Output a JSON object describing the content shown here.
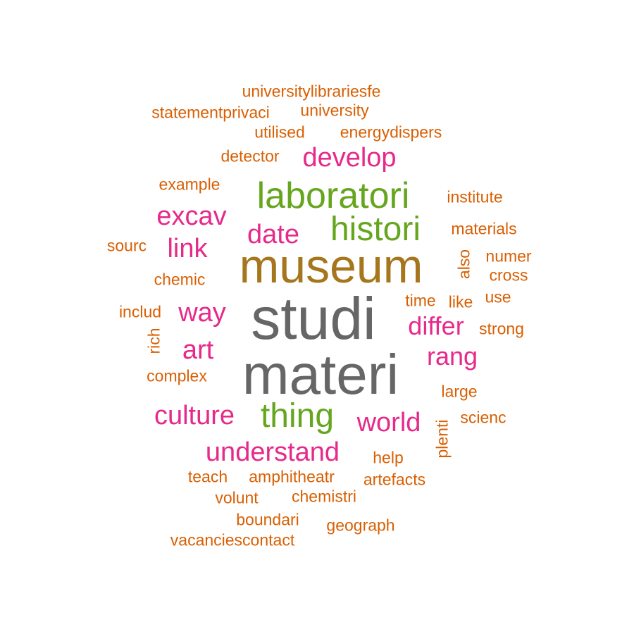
{
  "words": [
    {
      "text": "studi",
      "weight": 1.0,
      "color": "#666666"
    },
    {
      "text": "materi",
      "weight": 0.95,
      "color": "#666666"
    },
    {
      "text": "museum",
      "weight": 0.8,
      "color": "#A6761D"
    },
    {
      "text": "laboratori",
      "weight": 0.6,
      "color": "#66A61E"
    },
    {
      "text": "histori",
      "weight": 0.55,
      "color": "#66A61E"
    },
    {
      "text": "thing",
      "weight": 0.55,
      "color": "#66A61E"
    },
    {
      "text": "develop",
      "weight": 0.45,
      "color": "#E7298A"
    },
    {
      "text": "excav",
      "weight": 0.45,
      "color": "#E7298A"
    },
    {
      "text": "date",
      "weight": 0.45,
      "color": "#E7298A"
    },
    {
      "text": "link",
      "weight": 0.45,
      "color": "#E7298A"
    },
    {
      "text": "way",
      "weight": 0.45,
      "color": "#E7298A"
    },
    {
      "text": "art",
      "weight": 0.45,
      "color": "#E7298A"
    },
    {
      "text": "differ",
      "weight": 0.42,
      "color": "#E7298A"
    },
    {
      "text": "rang",
      "weight": 0.42,
      "color": "#E7298A"
    },
    {
      "text": "culture",
      "weight": 0.45,
      "color": "#E7298A"
    },
    {
      "text": "world",
      "weight": 0.45,
      "color": "#E7298A"
    },
    {
      "text": "understand",
      "weight": 0.45,
      "color": "#E7298A"
    },
    {
      "text": "universitylibrariesfe",
      "weight": 0.2,
      "color": "#D95F02"
    },
    {
      "text": "statementprivaci",
      "weight": 0.2,
      "color": "#D95F02"
    },
    {
      "text": "university",
      "weight": 0.2,
      "color": "#D95F02"
    },
    {
      "text": "utilised",
      "weight": 0.2,
      "color": "#D95F02"
    },
    {
      "text": "energydispers",
      "weight": 0.2,
      "color": "#D95F02"
    },
    {
      "text": "detector",
      "weight": 0.2,
      "color": "#D95F02"
    },
    {
      "text": "example",
      "weight": 0.2,
      "color": "#D95F02"
    },
    {
      "text": "institute",
      "weight": 0.2,
      "color": "#D95F02"
    },
    {
      "text": "materials",
      "weight": 0.2,
      "color": "#D95F02"
    },
    {
      "text": "sourc",
      "weight": 0.2,
      "color": "#D95F02"
    },
    {
      "text": "numer",
      "weight": 0.2,
      "color": "#D95F02"
    },
    {
      "text": "also",
      "weight": 0.2,
      "color": "#D95F02"
    },
    {
      "text": "cross",
      "weight": 0.2,
      "color": "#D95F02"
    },
    {
      "text": "chemic",
      "weight": 0.2,
      "color": "#D95F02"
    },
    {
      "text": "time",
      "weight": 0.2,
      "color": "#D95F02"
    },
    {
      "text": "like",
      "weight": 0.2,
      "color": "#D95F02"
    },
    {
      "text": "use",
      "weight": 0.2,
      "color": "#D95F02"
    },
    {
      "text": "includ",
      "weight": 0.2,
      "color": "#D95F02"
    },
    {
      "text": "strong",
      "weight": 0.2,
      "color": "#D95F02"
    },
    {
      "text": "rich",
      "weight": 0.2,
      "color": "#D95F02"
    },
    {
      "text": "complex",
      "weight": 0.2,
      "color": "#D95F02"
    },
    {
      "text": "large",
      "weight": 0.2,
      "color": "#D95F02"
    },
    {
      "text": "scienc",
      "weight": 0.2,
      "color": "#D95F02"
    },
    {
      "text": "plenti",
      "weight": 0.2,
      "color": "#D95F02"
    },
    {
      "text": "help",
      "weight": 0.2,
      "color": "#D95F02"
    },
    {
      "text": "teach",
      "weight": 0.2,
      "color": "#D95F02"
    },
    {
      "text": "amphitheatr",
      "weight": 0.2,
      "color": "#D95F02"
    },
    {
      "text": "artefacts",
      "weight": 0.2,
      "color": "#D95F02"
    },
    {
      "text": "volunt",
      "weight": 0.2,
      "color": "#D95F02"
    },
    {
      "text": "chemistri",
      "weight": 0.2,
      "color": "#D95F02"
    },
    {
      "text": "boundari",
      "weight": 0.2,
      "color": "#D95F02"
    },
    {
      "text": "geograph",
      "weight": 0.2,
      "color": "#D95F02"
    },
    {
      "text": "vacanciescontact",
      "weight": 0.2,
      "color": "#D95F02"
    }
  ]
}
